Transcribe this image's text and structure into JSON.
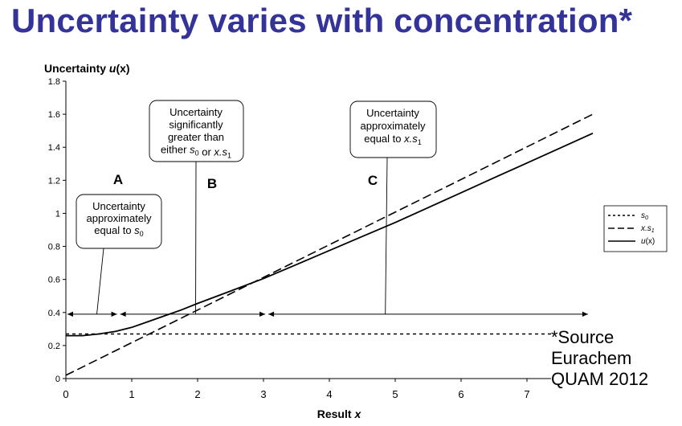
{
  "page": {
    "title": "Uncertainty varies with concentration*",
    "source_lines": [
      "*Source",
      "Eurachem",
      "QUAM 2012"
    ]
  },
  "chart_data": {
    "type": "line",
    "title": "",
    "ylabel_main": "Uncertainty ",
    "ylabel_italic": "u",
    "ylabel_tail": "(x)",
    "xlabel_main": "Result ",
    "xlabel_italic": "x",
    "xlim": [
      0,
      8
    ],
    "ylim": [
      0,
      1.8
    ],
    "x_ticks": [
      "0",
      "1",
      "2",
      "3",
      "4",
      "5",
      "6",
      "7"
    ],
    "y_ticks": [
      "0",
      "0.2",
      "0.4",
      "0.6",
      "0.8",
      "1",
      "1.2",
      "1.4",
      "1.6",
      "1.8"
    ],
    "grid": false,
    "legend_position": "right",
    "series": [
      {
        "name": "s0",
        "label_main": "s",
        "label_sub": "0",
        "style": "dotted",
        "x": [
          0,
          8
        ],
        "y": [
          0.27,
          0.27
        ]
      },
      {
        "name": "x.s1",
        "label_main": "x.s",
        "label_sub": "1",
        "style": "dashed",
        "x": [
          0,
          8
        ],
        "y": [
          0.02,
          1.6
        ]
      },
      {
        "name": "u(x)",
        "label_main": "u",
        "label_tail": "(x)",
        "style": "solid",
        "x": [
          0,
          0.25,
          0.5,
          0.75,
          1,
          1.25,
          1.5,
          1.75,
          2,
          2.5,
          3,
          3.5,
          4,
          4.5,
          5,
          5.5,
          6,
          6.5,
          7,
          7.5,
          8
        ],
        "y": [
          0.26,
          0.26,
          0.27,
          0.285,
          0.31,
          0.345,
          0.38,
          0.415,
          0.455,
          0.53,
          0.605,
          0.69,
          0.775,
          0.86,
          0.945,
          1.035,
          1.125,
          1.215,
          1.305,
          1.395,
          1.485
        ]
      }
    ],
    "regions": [
      {
        "label": "A",
        "from": 0,
        "to": 0.8
      },
      {
        "label": "B",
        "from": 0.8,
        "to": 3.05
      },
      {
        "label": "C",
        "from": 3.05,
        "to": 7.95
      }
    ],
    "region_arrow_y": 0.39,
    "annotations": [
      {
        "id": "a",
        "lines": [
          [
            "Uncertainty"
          ],
          [
            "approximately"
          ],
          [
            "equal to ",
            {
              "i": "s"
            },
            {
              "sub": "0"
            }
          ]
        ],
        "pointer": {
          "x": 0.47,
          "y": 0.39
        }
      },
      {
        "id": "b",
        "lines": [
          [
            "Uncertainty"
          ],
          [
            "significantly"
          ],
          [
            "greater than"
          ],
          [
            "either ",
            {
              "i": "s"
            },
            {
              "sub": "0"
            },
            "  or ",
            {
              "i": "x.s"
            },
            {
              "sub": "1"
            }
          ]
        ],
        "pointer": {
          "x": 1.97,
          "y": 0.39
        }
      },
      {
        "id": "c",
        "lines": [
          [
            "Uncertainty"
          ],
          [
            "approximately"
          ],
          [
            "equal to  ",
            {
              "i": "x.s"
            },
            {
              "sub": "1"
            }
          ]
        ],
        "pointer": {
          "x": 4.85,
          "y": 0.39
        }
      }
    ]
  }
}
